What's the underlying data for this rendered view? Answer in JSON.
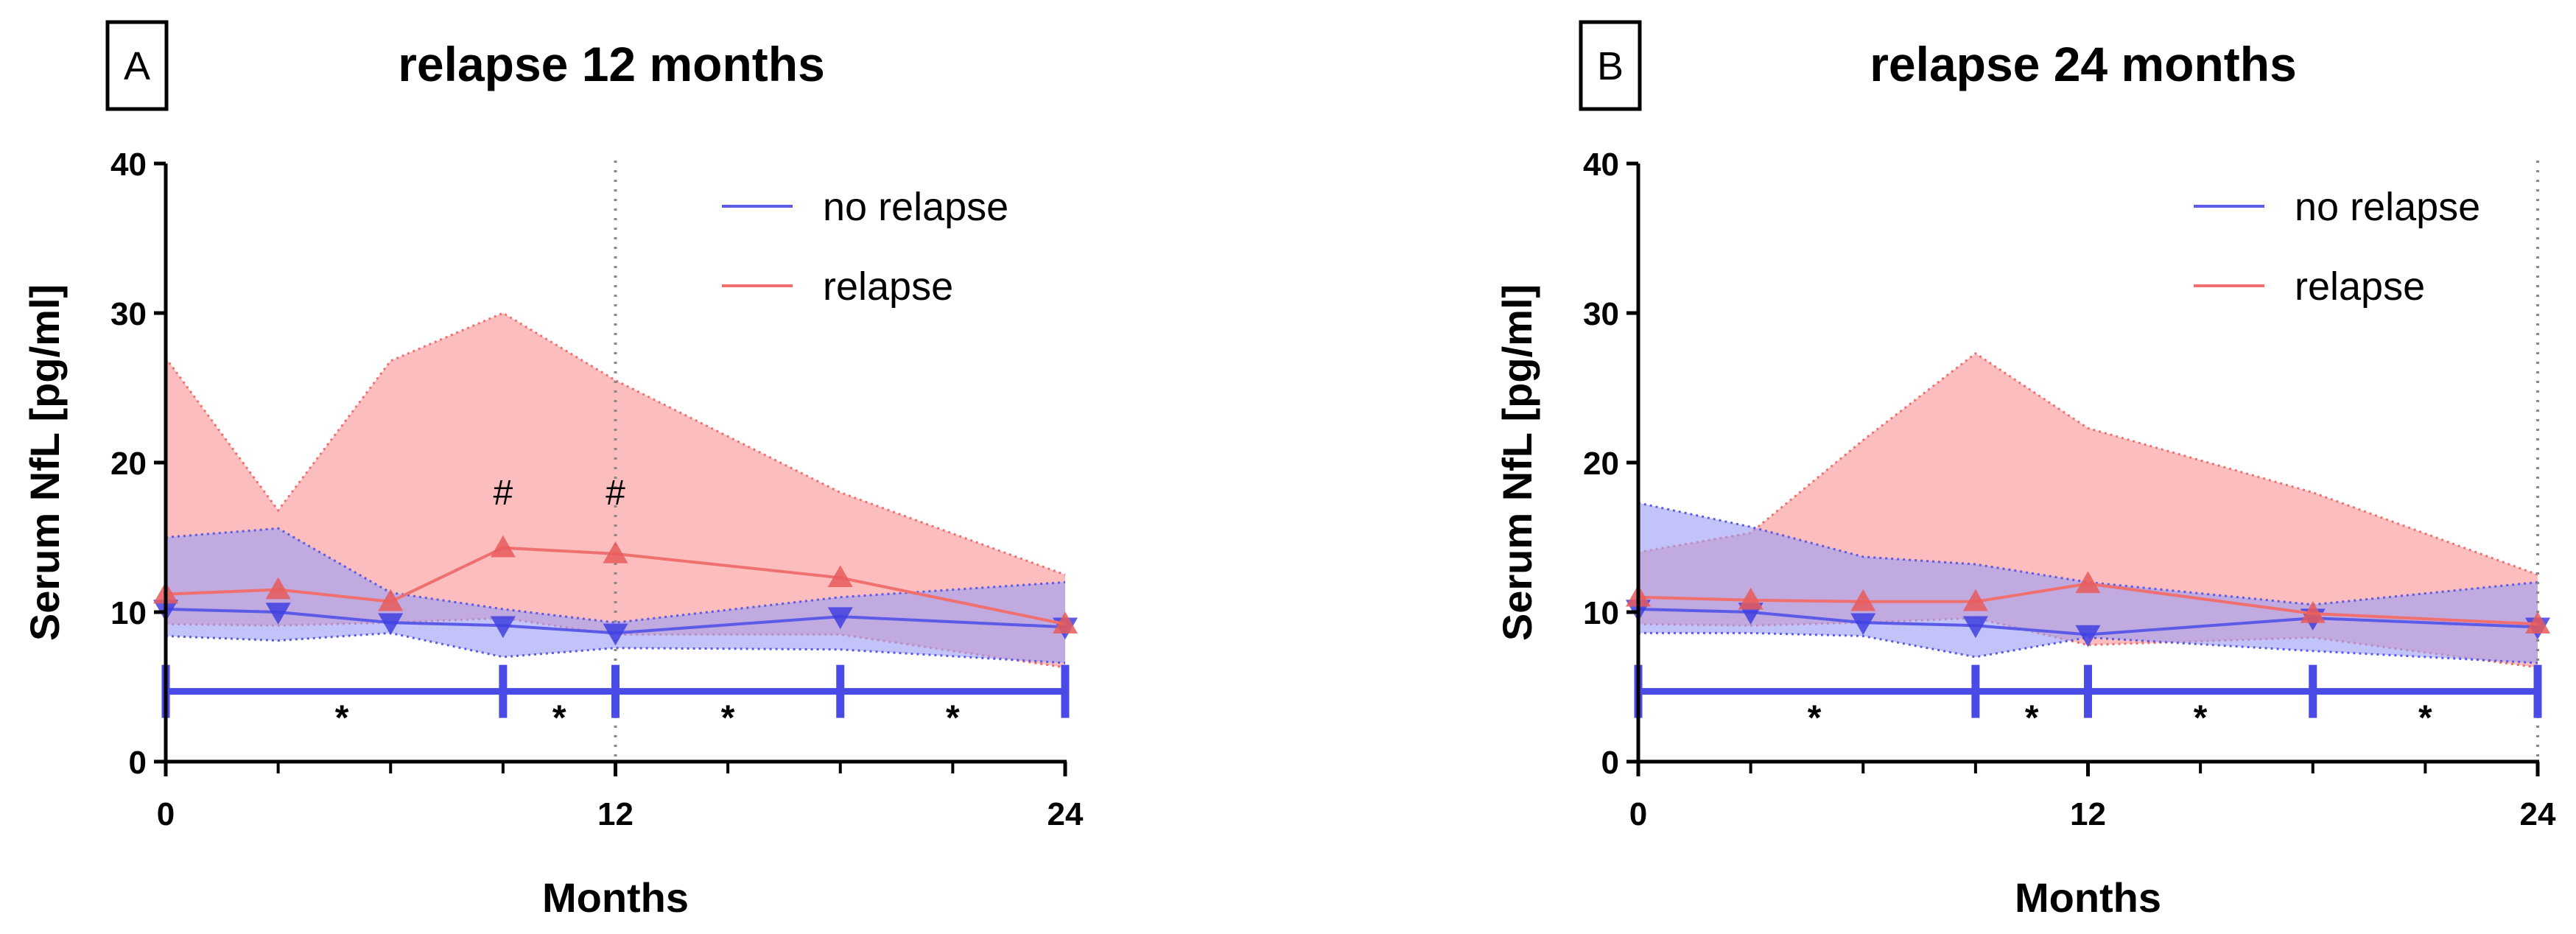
{
  "colors": {
    "no_relapse_line": "#5b5be8",
    "no_relapse_marker": "#4040e0",
    "no_relapse_band": "#9a9cf5",
    "relapse_line": "#f07070",
    "relapse_marker": "#e85a5a",
    "relapse_band": "#f9a3a3",
    "axis": "#000000",
    "sig_bar": "#4a4ae6"
  },
  "chart_data": [
    {
      "type": "line",
      "panel_label": "A",
      "title": "relapse 12 months",
      "xlabel": "Months",
      "ylabel": "Serum NfL [pg/ml]",
      "xlim": [
        0,
        24
      ],
      "ylim": [
        0,
        40
      ],
      "x_tick_labels": [
        {
          "x": 0,
          "label": "0"
        },
        {
          "x": 12,
          "label": "12"
        },
        {
          "x": 24,
          "label": "24"
        }
      ],
      "x_minor_ticks": [
        3,
        6,
        9,
        15,
        18,
        21
      ],
      "y_tick_labels": [
        {
          "y": 0,
          "label": "0"
        },
        {
          "y": 10,
          "label": "10"
        },
        {
          "y": 20,
          "label": "20"
        },
        {
          "y": 30,
          "label": "30"
        },
        {
          "y": 40,
          "label": "40"
        }
      ],
      "vline_x": 12,
      "legend": [
        "no relapse",
        "relapse"
      ],
      "series": [
        {
          "name": "no relapse",
          "marker": "triangle-down",
          "x": [
            0,
            3,
            6,
            9,
            12,
            18,
            24
          ],
          "y": [
            10.2,
            10.0,
            9.3,
            9.1,
            8.6,
            9.7,
            9.0
          ],
          "band_upper": [
            15.0,
            15.6,
            11.3,
            10.2,
            9.3,
            11.0,
            12.0
          ],
          "band_lower": [
            8.4,
            8.1,
            8.6,
            7.0,
            7.6,
            7.5,
            6.6
          ]
        },
        {
          "name": "relapse",
          "marker": "triangle-up",
          "x": [
            0,
            3,
            6,
            9,
            12,
            18,
            24
          ],
          "y": [
            11.2,
            11.5,
            10.7,
            14.3,
            13.9,
            12.3,
            9.2
          ],
          "band_upper": [
            27.0,
            16.8,
            26.8,
            30.0,
            25.5,
            18.0,
            12.5
          ],
          "band_lower": [
            9.2,
            9.1,
            9.3,
            9.6,
            8.5,
            8.5,
            6.3
          ]
        }
      ],
      "hash_annotations": [
        {
          "x": 9,
          "y": 17.2,
          "text": "#"
        },
        {
          "x": 12,
          "y": 17.2,
          "text": "#"
        }
      ],
      "significance_bar": {
        "y": 4.7,
        "breaks": [
          0,
          9,
          12,
          18,
          24
        ],
        "stars": [
          {
            "x": 4.7,
            "text": "*"
          },
          {
            "x": 10.5,
            "text": "*"
          },
          {
            "x": 15.0,
            "text": "*"
          },
          {
            "x": 21.0,
            "text": "*"
          }
        ]
      }
    },
    {
      "type": "line",
      "panel_label": "B",
      "title": "relapse 24 months",
      "xlabel": "Months",
      "ylabel": "Serum NfL [pg/ml]",
      "xlim": [
        0,
        24
      ],
      "ylim": [
        0,
        40
      ],
      "x_tick_labels": [
        {
          "x": 0,
          "label": "0"
        },
        {
          "x": 12,
          "label": "12"
        },
        {
          "x": 24,
          "label": "24"
        }
      ],
      "x_minor_ticks": [
        3,
        6,
        9,
        15,
        18,
        21
      ],
      "y_tick_labels": [
        {
          "y": 0,
          "label": "0"
        },
        {
          "y": 10,
          "label": "10"
        },
        {
          "y": 20,
          "label": "20"
        },
        {
          "y": 30,
          "label": "30"
        },
        {
          "y": 40,
          "label": "40"
        }
      ],
      "vline_x": 24,
      "legend": [
        "no relapse",
        "relapse"
      ],
      "series": [
        {
          "name": "no relapse",
          "marker": "triangle-down",
          "x": [
            0,
            3,
            6,
            9,
            12,
            18,
            24
          ],
          "y": [
            10.2,
            10.0,
            9.3,
            9.1,
            8.5,
            9.6,
            9.0
          ],
          "band_upper": [
            17.3,
            15.7,
            13.7,
            13.2,
            12.0,
            10.5,
            12.0
          ],
          "band_lower": [
            8.6,
            8.6,
            8.4,
            7.0,
            8.3,
            7.4,
            6.6
          ]
        },
        {
          "name": "relapse",
          "marker": "triangle-up",
          "x": [
            0,
            3,
            6,
            9,
            12,
            18,
            24
          ],
          "y": [
            11.0,
            10.8,
            10.7,
            10.7,
            11.9,
            9.9,
            9.2
          ],
          "band_upper": [
            14.0,
            15.3,
            21.5,
            27.3,
            22.3,
            18.0,
            12.5
          ],
          "band_lower": [
            9.2,
            9.1,
            9.3,
            9.6,
            7.8,
            8.3,
            6.3
          ]
        }
      ],
      "hash_annotations": [],
      "significance_bar": {
        "y": 4.7,
        "breaks": [
          0,
          9,
          12,
          18,
          24
        ],
        "stars": [
          {
            "x": 4.7,
            "text": "*"
          },
          {
            "x": 10.5,
            "text": "*"
          },
          {
            "x": 15.0,
            "text": "*"
          },
          {
            "x": 21.0,
            "text": "*"
          }
        ]
      }
    }
  ]
}
